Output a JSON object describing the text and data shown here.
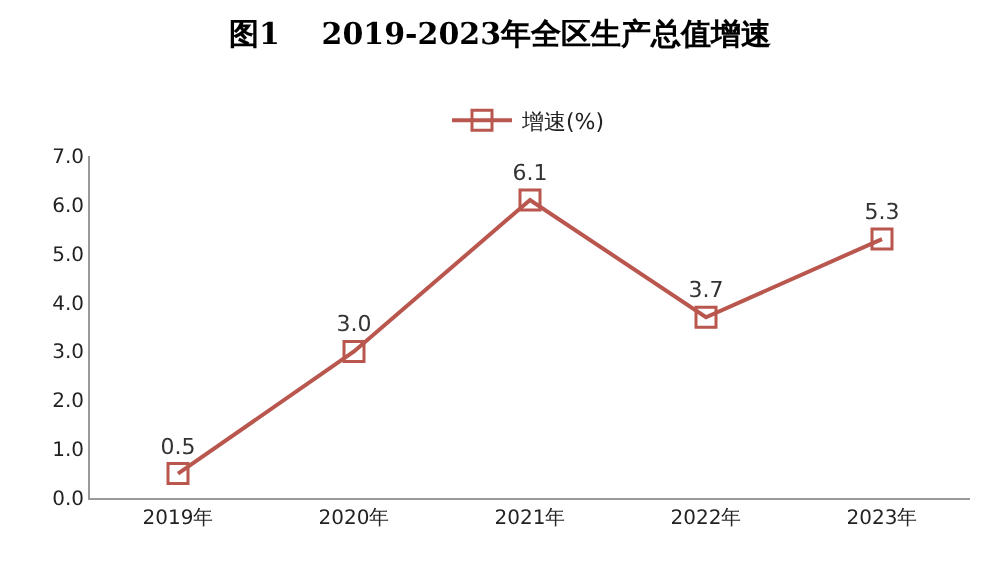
{
  "chart_data": {
    "type": "line",
    "title": "图1    2019-2023年全区生产总值增速",
    "categories": [
      "2019年",
      "2020年",
      "2021年",
      "2022年",
      "2023年"
    ],
    "series": [
      {
        "name": "增速(%)",
        "color": "#b9574f",
        "values": [
          0.5,
          3.0,
          6.1,
          3.7,
          5.3
        ],
        "value_labels": [
          "0.5",
          "3.0",
          "6.1",
          "3.7",
          "5.3"
        ]
      }
    ],
    "ylim": [
      0,
      7
    ],
    "yticks": [
      {
        "value": 0,
        "label": "0.0"
      },
      {
        "value": 1,
        "label": "1.0"
      },
      {
        "value": 2,
        "label": "2.0"
      },
      {
        "value": 3,
        "label": "3.0"
      },
      {
        "value": 4,
        "label": "4.0"
      },
      {
        "value": 5,
        "label": "5.0"
      },
      {
        "value": 6,
        "label": "6.0"
      },
      {
        "value": 7,
        "label": "7.0"
      }
    ],
    "grid": false,
    "legend": "top",
    "marker": "square",
    "line_style": "solid"
  }
}
